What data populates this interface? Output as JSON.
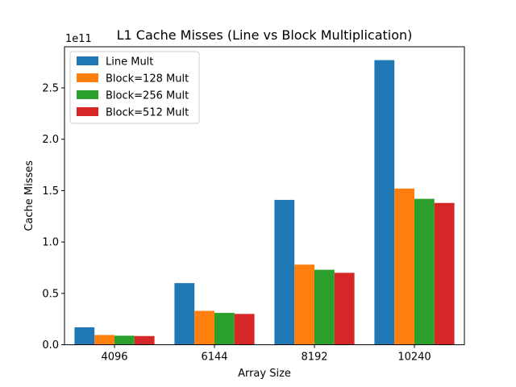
{
  "chart_data": {
    "type": "bar",
    "title": "L1 Cache Misses (Line vs Block Multiplication)",
    "xlabel": "Array Size",
    "ylabel": "Cache Misses",
    "y_offset_label": "1e11",
    "categories": [
      "4096",
      "6144",
      "8192",
      "10240"
    ],
    "ylim": [
      0,
      2.9
    ],
    "y_ticks": [
      0.0,
      0.5,
      1.0,
      1.5,
      2.0,
      2.5
    ],
    "y_tick_labels": [
      "0.0",
      "0.5",
      "1.0",
      "1.5",
      "2.0",
      "2.5"
    ],
    "legend_position": "top-left",
    "grid": false,
    "series": [
      {
        "name": "Line Mult",
        "color": "#1f77b4",
        "values": [
          0.17,
          0.6,
          1.41,
          2.77
        ]
      },
      {
        "name": "Block=128 Mult",
        "color": "#ff7f0e",
        "values": [
          0.095,
          0.33,
          0.78,
          1.52
        ]
      },
      {
        "name": "Block=256 Mult",
        "color": "#2ca02c",
        "values": [
          0.088,
          0.31,
          0.73,
          1.42
        ]
      },
      {
        "name": "Block=512 Mult",
        "color": "#d62728",
        "values": [
          0.085,
          0.3,
          0.7,
          1.38
        ]
      }
    ]
  }
}
